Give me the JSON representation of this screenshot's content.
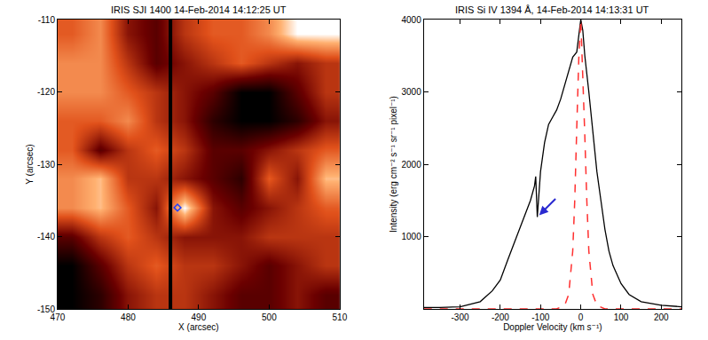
{
  "chart_data": [
    {
      "type": "heatmap",
      "title": "IRIS SJI 1400 14-Feb-2014 14:12:25 UT",
      "xlabel": "X (arcsec)",
      "ylabel": "Y (arcsec)",
      "xlim": [
        470,
        510
      ],
      "ylim": [
        -150,
        -110
      ],
      "xticks": [
        470,
        480,
        490,
        500,
        510
      ],
      "yticks": [
        -150,
        -140,
        -130,
        -120,
        -110
      ],
      "x": [
        472,
        476,
        480,
        484,
        488,
        492,
        496,
        500,
        504,
        508
      ],
      "y": [
        -148,
        -144,
        -140,
        -136,
        -132,
        -128,
        -124,
        -120,
        -116,
        -112
      ],
      "cells": [
        [
          1,
          2,
          4,
          5,
          5,
          4,
          3,
          3,
          4,
          3
        ],
        [
          1,
          3,
          5,
          6,
          5,
          5,
          4,
          3,
          4,
          5
        ],
        [
          3,
          5,
          6,
          5,
          4,
          4,
          4,
          5,
          5,
          5
        ],
        [
          7,
          8,
          6,
          4,
          9,
          4,
          3,
          4,
          5,
          6
        ],
        [
          7,
          8,
          5,
          5,
          4,
          3,
          2,
          6,
          4,
          8
        ],
        [
          6,
          3,
          5,
          6,
          5,
          3,
          3,
          4,
          5,
          6
        ],
        [
          6,
          6,
          7,
          5,
          4,
          2,
          1,
          1,
          2,
          4
        ],
        [
          7,
          7,
          6,
          5,
          4,
          3,
          1,
          1,
          3,
          5
        ],
        [
          7,
          7,
          5,
          3,
          4,
          5,
          6,
          5,
          4,
          5
        ],
        [
          6,
          7,
          4,
          3,
          5,
          6,
          6,
          7,
          9,
          9
        ]
      ],
      "slit": {
        "x": 486,
        "color": "#000000"
      },
      "points": [
        {
          "x": 487,
          "y": -136,
          "color": "#1f3fff",
          "marker": "diamond-open"
        }
      ]
    },
    {
      "type": "line",
      "title": "IRIS Si IV 1394 Å, 14-Feb-2014 14:13:31 UT",
      "xlabel": "Doppler Velocity (km s⁻¹)",
      "ylabel": "Intensity (erg cm⁻² s⁻¹ sr⁻¹ pixel⁻¹)",
      "xlim": [
        -390,
        250
      ],
      "ylim": [
        0,
        4000
      ],
      "xticks": [
        -300,
        -200,
        -100,
        0,
        100,
        200
      ],
      "yticks": [
        1000,
        2000,
        3000,
        4000
      ],
      "series": [
        {
          "color": "#000000",
          "line_style": "solid",
          "x": [
            -390,
            -350,
            -300,
            -250,
            -220,
            -200,
            -180,
            -160,
            -140,
            -125,
            -115,
            -112,
            -108,
            -100,
            -90,
            -80,
            -70,
            -60,
            -50,
            -40,
            -30,
            -20,
            -10,
            -5,
            0,
            5,
            10,
            20,
            30,
            40,
            50,
            60,
            70,
            80,
            100,
            120,
            150,
            200,
            250
          ],
          "values": [
            20,
            20,
            30,
            100,
            250,
            400,
            700,
            1000,
            1300,
            1500,
            1700,
            1830,
            1270,
            1900,
            2300,
            2550,
            2650,
            2750,
            2900,
            3100,
            3300,
            3480,
            3550,
            3800,
            4000,
            3850,
            3500,
            3000,
            2400,
            1900,
            1500,
            1100,
            800,
            600,
            350,
            200,
            100,
            50,
            30
          ]
        },
        {
          "color": "#ff3030",
          "line_style": "dash",
          "x": [
            -390,
            -300,
            -60,
            -40,
            -30,
            -20,
            -15,
            -10,
            -5,
            0,
            5,
            10,
            15,
            20,
            30,
            40,
            60,
            100,
            250
          ],
          "values": [
            0,
            0,
            0,
            50,
            200,
            800,
            1500,
            2500,
            3450,
            4000,
            3300,
            2400,
            1500,
            800,
            200,
            50,
            0,
            0,
            0
          ]
        }
      ],
      "arrow": {
        "x": -108,
        "y": 1270,
        "color": "#2a2ad0"
      }
    }
  ]
}
